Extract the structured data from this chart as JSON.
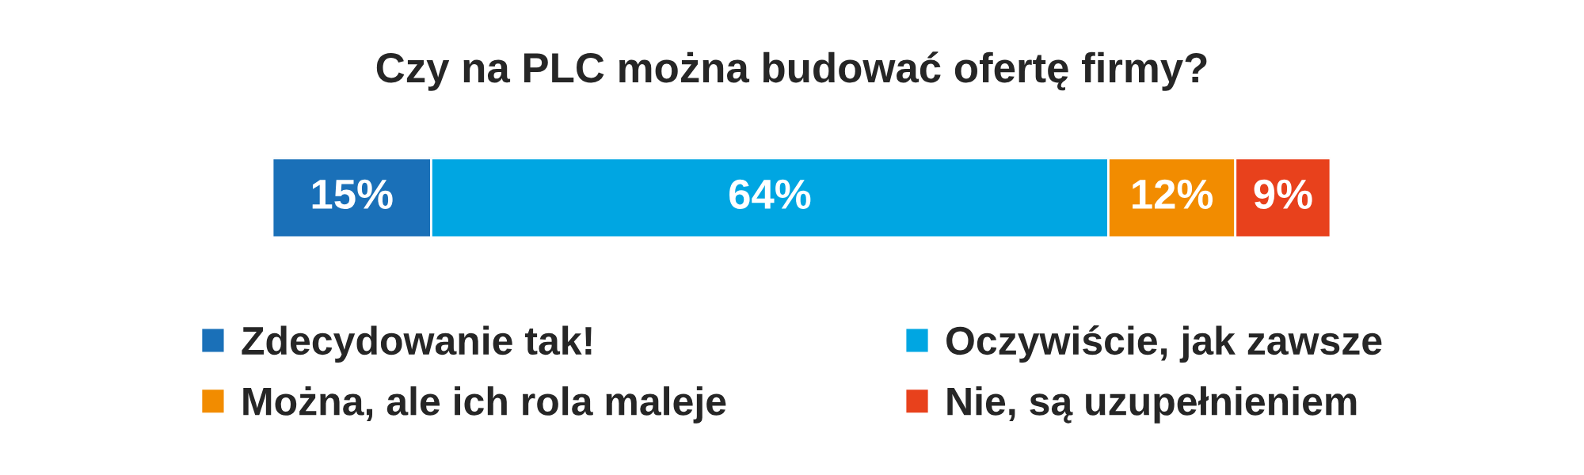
{
  "chart_data": {
    "type": "bar",
    "title": "Czy na PLC można budować ofertę firmy?",
    "orientation": "horizontal",
    "stacked": true,
    "categories": [
      null
    ],
    "legend": "bottom",
    "series": [
      {
        "name": "Zdecydowanie tak!",
        "color": "#1a70b8",
        "values": [
          15
        ],
        "value_labels": [
          "15%"
        ]
      },
      {
        "name": "Oczywiście, jak zawsze",
        "color": "#00a6e2",
        "values": [
          64
        ],
        "value_labels": [
          "64%"
        ]
      },
      {
        "name": "Można, ale ich rola maleje",
        "color": "#f28c00",
        "values": [
          12
        ],
        "value_labels": [
          "12%"
        ]
      },
      {
        "name": "Nie, są uzupełnieniem",
        "color": "#e8411c",
        "values": [
          9
        ],
        "value_labels": [
          "9%"
        ]
      }
    ]
  }
}
